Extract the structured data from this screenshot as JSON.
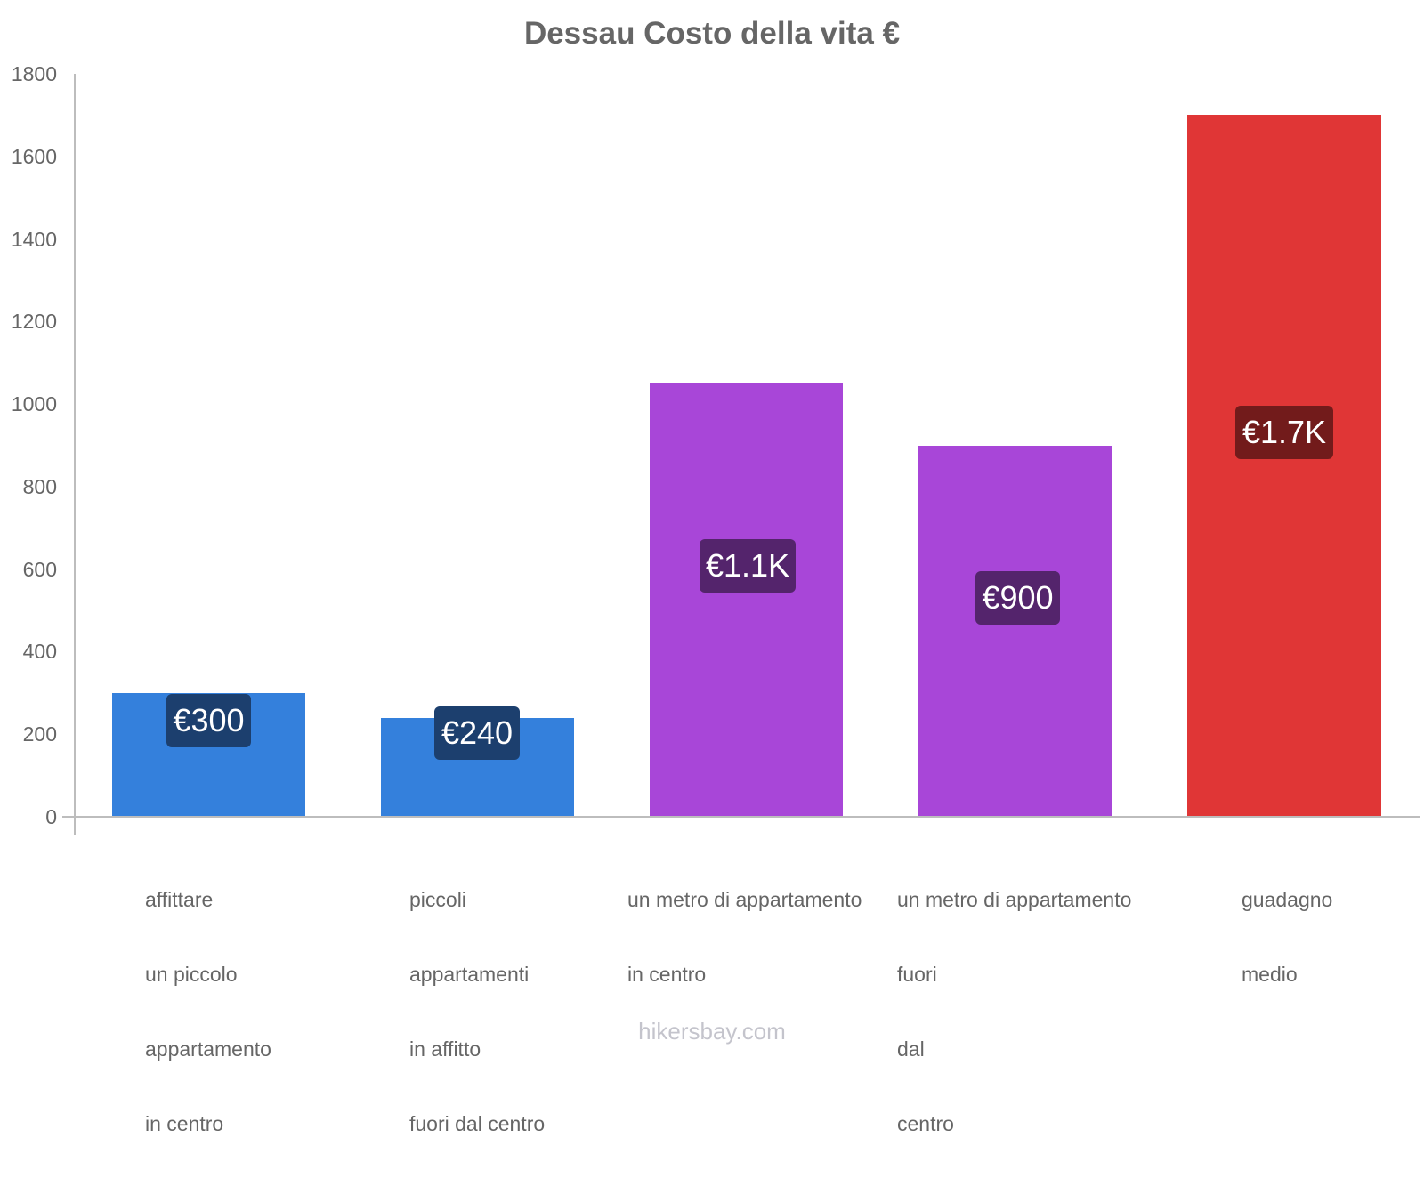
{
  "title": "Dessau Costo della vita €",
  "footer": "hikersbay.com",
  "y_axis": {
    "ticks": [
      "1800",
      "1600",
      "1400",
      "1200",
      "1000",
      "800",
      "600",
      "400",
      "200",
      "0"
    ]
  },
  "bars": [
    {
      "label_lines": [
        "affittare",
        "un piccolo",
        "appartamento",
        "in centro"
      ],
      "value": 300,
      "display": "€300",
      "color": "#3480dc",
      "label_bg": "#1c3f6e"
    },
    {
      "label_lines": [
        "piccoli",
        "appartamenti",
        "in affitto",
        "fuori dal centro"
      ],
      "value": 240,
      "display": "€240",
      "color": "#3480dc",
      "label_bg": "#1c3f6e"
    },
    {
      "label_lines": [
        "un metro di appartamento",
        "in centro"
      ],
      "value": 1050,
      "display": "€1.1K",
      "color": "#a846d8",
      "label_bg": "#54246c"
    },
    {
      "label_lines": [
        "un metro di appartamento",
        "fuori",
        "dal",
        "centro"
      ],
      "value": 900,
      "display": "€900",
      "color": "#a846d8",
      "label_bg": "#54246c"
    },
    {
      "label_lines": [
        "guadagno",
        "medio"
      ],
      "value": 1700,
      "display": "€1.7K",
      "color": "#e03636",
      "label_bg": "#721b1b"
    }
  ],
  "chart_data": {
    "type": "bar",
    "title": "Dessau Costo della vita €",
    "categories": [
      "affittare un piccolo appartamento in centro",
      "piccoli appartamenti in affitto fuori dal centro",
      "un metro di appartamento in centro",
      "un metro di appartamento fuori dal centro",
      "guadagno medio"
    ],
    "values": [
      300,
      240,
      1050,
      900,
      1700
    ],
    "data_labels": [
      "€300",
      "€240",
      "€1.1K",
      "€900",
      "€1.7K"
    ],
    "colors": [
      "#3480dc",
      "#3480dc",
      "#a846d8",
      "#a846d8",
      "#e03636"
    ],
    "xlabel": "",
    "ylabel": "",
    "ylim": [
      0,
      1800
    ],
    "yticks": [
      0,
      200,
      400,
      600,
      800,
      1000,
      1200,
      1400,
      1600,
      1800
    ],
    "grid": false,
    "legend": null,
    "source": "hikersbay.com"
  }
}
